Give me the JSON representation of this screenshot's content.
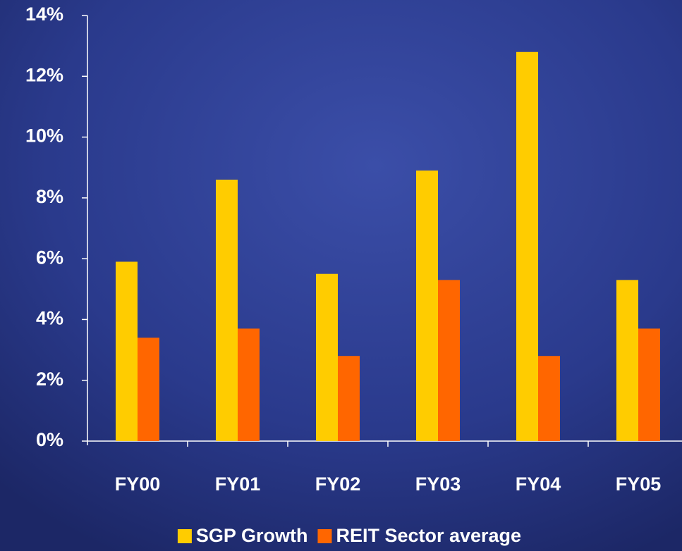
{
  "chart_data": {
    "type": "bar",
    "categories": [
      "FY00",
      "FY01",
      "FY02",
      "FY03",
      "FY04",
      "FY05"
    ],
    "series": [
      {
        "name": "SGP Growth",
        "color": "#ffcc00",
        "values": [
          5.9,
          8.6,
          5.5,
          8.9,
          12.8,
          5.3
        ]
      },
      {
        "name": "REIT Sector average",
        "color": "#ff6600",
        "values": [
          3.4,
          3.7,
          2.8,
          5.3,
          2.8,
          3.7
        ]
      }
    ],
    "ylim": [
      0,
      14
    ],
    "yticks": [
      {
        "value": 0,
        "label": "0%"
      },
      {
        "value": 2,
        "label": "2%"
      },
      {
        "value": 4,
        "label": "4%"
      },
      {
        "value": 6,
        "label": "6%"
      },
      {
        "value": 8,
        "label": "8%"
      },
      {
        "value": 10,
        "label": "10%"
      },
      {
        "value": 12,
        "label": "12%"
      },
      {
        "value": 14,
        "label": "14%"
      }
    ],
    "legend": "bottom"
  }
}
